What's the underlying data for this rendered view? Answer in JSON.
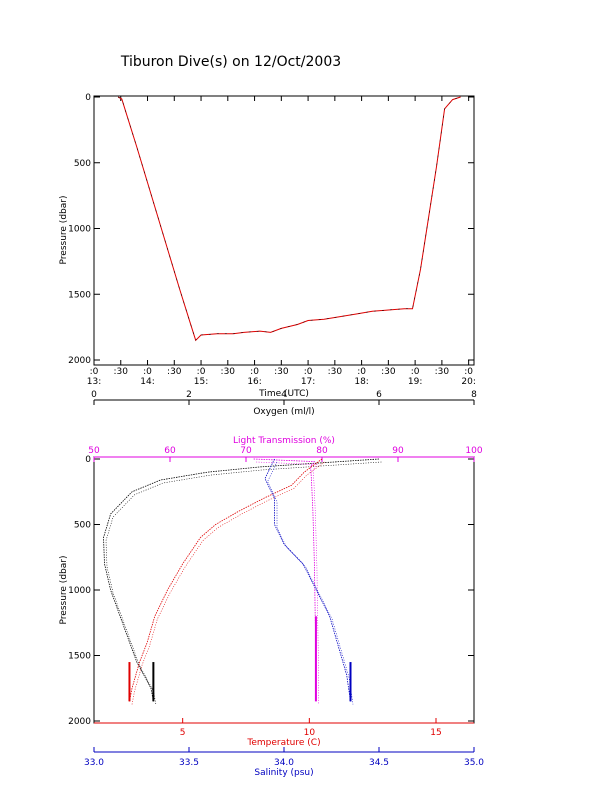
{
  "title": "Tiburon Dive(s) on 12/Oct/2003",
  "colors": {
    "axis": "#000000",
    "light_transmission": "#e000e0",
    "temperature": "#e00000",
    "salinity": "#0000c0",
    "oxygen": "#000000",
    "dive_line": "#e00000"
  },
  "chart_data": [
    {
      "type": "line",
      "name": "dive-profile",
      "xlabel": "Time (UTC)",
      "ylabel": "Pressure (dbar)",
      "x_unit": "hours UTC",
      "xlim": [
        13.0,
        20.1
      ],
      "ylim": [
        2000,
        0
      ],
      "x_ticks": [
        {
          "v": 13.0,
          "top": ":0",
          "bottom": "13:"
        },
        {
          "v": 13.5,
          "top": ":30",
          "bottom": ""
        },
        {
          "v": 14.0,
          "top": ":0",
          "bottom": "14:"
        },
        {
          "v": 14.5,
          "top": ":30",
          "bottom": ""
        },
        {
          "v": 15.0,
          "top": ":0",
          "bottom": "15:"
        },
        {
          "v": 15.5,
          "top": ":30",
          "bottom": ""
        },
        {
          "v": 16.0,
          "top": ":0",
          "bottom": "16:"
        },
        {
          "v": 16.5,
          "top": ":30",
          "bottom": ""
        },
        {
          "v": 17.0,
          "top": ":0",
          "bottom": "17:"
        },
        {
          "v": 17.5,
          "top": ":30",
          "bottom": ""
        },
        {
          "v": 18.0,
          "top": ":0",
          "bottom": "18:"
        },
        {
          "v": 18.5,
          "top": ":30",
          "bottom": ""
        },
        {
          "v": 19.0,
          "top": ":0",
          "bottom": "19:"
        },
        {
          "v": 19.5,
          "top": ":30",
          "bottom": ""
        },
        {
          "v": 20.0,
          "top": ":0",
          "bottom": "20:"
        }
      ],
      "y_ticks": [
        0,
        500,
        1000,
        1500,
        2000
      ],
      "x": [
        13.45,
        13.52,
        13.6,
        13.8,
        14.0,
        14.2,
        14.4,
        14.6,
        14.8,
        14.9,
        15.0,
        15.3,
        15.6,
        15.8,
        16.1,
        16.3,
        16.5,
        16.8,
        17.0,
        17.3,
        17.6,
        17.9,
        18.2,
        18.5,
        18.8,
        18.95,
        19.1,
        19.25,
        19.4,
        19.55,
        19.7,
        19.85
      ],
      "y": [
        0,
        15,
        120,
        380,
        650,
        920,
        1190,
        1460,
        1720,
        1850,
        1810,
        1800,
        1800,
        1790,
        1780,
        1790,
        1760,
        1730,
        1700,
        1690,
        1670,
        1650,
        1630,
        1620,
        1610,
        1610,
        1310,
        920,
        530,
        90,
        20,
        0
      ]
    },
    {
      "type": "line",
      "name": "vertical-profiles",
      "ylabel": "Pressure (dbar)",
      "ylim": [
        2000,
        0
      ],
      "y_ticks": [
        0,
        500,
        1000,
        1500,
        2000
      ],
      "axes": {
        "oxygen": {
          "label": "Oxygen (ml/l)",
          "lim": [
            0,
            8
          ],
          "ticks": [
            0,
            2,
            4,
            6,
            8
          ]
        },
        "light_transmission": {
          "label": "Light Transmission (%)",
          "lim": [
            50,
            100
          ],
          "ticks": [
            50,
            60,
            70,
            80,
            90,
            100
          ]
        },
        "temperature": {
          "label": "Temperature (C)",
          "lim": [
            1.5,
            16.5
          ],
          "ticks": [
            5,
            10,
            15
          ]
        },
        "salinity": {
          "label": "Salinity (psu)",
          "lim": [
            33.0,
            35.0
          ],
          "ticks": [
            "33.0",
            "33.5",
            "34.0",
            "34.5",
            "35.0"
          ]
        }
      },
      "series": [
        {
          "key": "oxygen",
          "axis": "oxygen",
          "x": [
            6.0,
            3.5,
            2.4,
            1.4,
            0.8,
            0.35,
            0.2,
            0.22,
            0.35,
            0.55,
            0.75,
            0.9,
            1.05,
            1.2,
            1.25
          ],
          "y": [
            0,
            60,
            100,
            160,
            250,
            420,
            600,
            800,
            1000,
            1200,
            1400,
            1550,
            1650,
            1750,
            1850
          ]
        },
        {
          "key": "light_transmission",
          "axis": "light_transmission",
          "x": [
            71,
            79,
            78.5,
            78.6,
            78.8,
            79.0,
            79.1,
            79.2,
            79.2,
            79.2
          ],
          "y": [
            0,
            20,
            60,
            150,
            400,
            800,
            1200,
            1500,
            1700,
            1850
          ]
        },
        {
          "key": "temperature",
          "axis": "temperature",
          "x": [
            10.5,
            9.8,
            9.3,
            8.2,
            7.2,
            6.3,
            5.7,
            5.0,
            4.4,
            3.9,
            3.6,
            3.3,
            3.15,
            3.0,
            2.9
          ],
          "y": [
            0,
            100,
            200,
            300,
            400,
            500,
            600,
            800,
            1000,
            1200,
            1400,
            1550,
            1650,
            1750,
            1850
          ]
        },
        {
          "key": "salinity",
          "axis": "salinity",
          "x": [
            33.95,
            33.9,
            33.95,
            33.95,
            34.0,
            34.1,
            34.17,
            34.24,
            34.28,
            34.31,
            34.33,
            34.34,
            34.35
          ],
          "y": [
            0,
            150,
            300,
            500,
            650,
            800,
            1000,
            1200,
            1400,
            1550,
            1650,
            1750,
            1850
          ]
        }
      ]
    }
  ]
}
